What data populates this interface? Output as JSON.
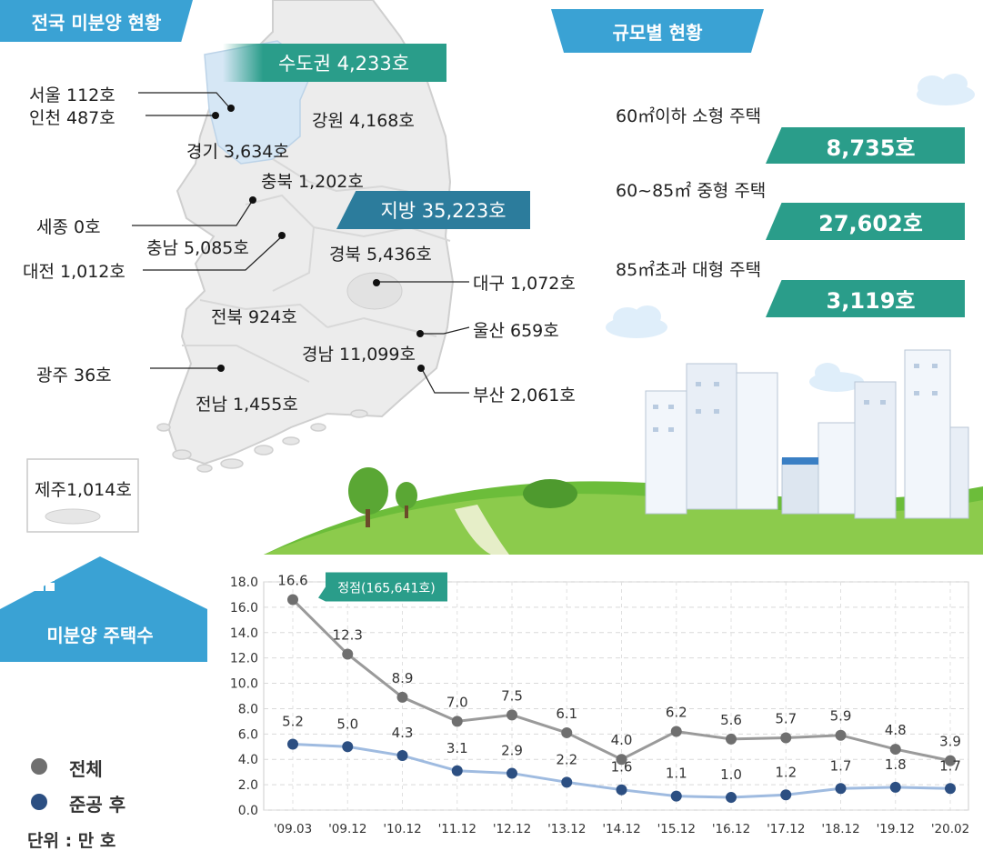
{
  "header": {
    "national_title": "전국 미분양 현황",
    "scale_title": "규모별 현황",
    "count_title": "미분양 주택수"
  },
  "regions": {
    "capital_total": "수도권 4,233호",
    "local_total": "지방 35,223호",
    "seoul": "서울  112호",
    "incheon": "인천 487호",
    "gyeonggi": "경기 3,634호",
    "gangwon": "강원 4,168호",
    "chungbuk": "충북 1,202호",
    "sejong": "세종 0호",
    "chungnam": "충남 5,085호",
    "daejeon": "대전 1,012호",
    "gyeongbuk": "경북 5,436호",
    "daegu": "대구 1,072호",
    "jeonbuk": "전북 924호",
    "ulsan": "울산 659호",
    "gyeongnam": "경남 11,099호",
    "gwangju": "광주 36호",
    "busan": "부산 2,061호",
    "jeonnam": "전남 1,455호",
    "jeju": "제주1,014호"
  },
  "scale": {
    "small_label": "60㎡이하 소형 주택",
    "small_value": "8,735호",
    "medium_label": "60~85㎡ 중형 주택",
    "medium_value": "27,602호",
    "large_label": "85㎡초과 대형 주택",
    "large_value": "3,119호"
  },
  "legend": {
    "total": "전체",
    "after_completion": "준공 후",
    "unit": "단위 : 만 호"
  },
  "colors": {
    "teal": "#2a9d8a",
    "banner_blue": "#3aa2d4",
    "total_line": "#9a9a9a",
    "total_dot": "#6f6f6f",
    "after_line": "#9fbbe0",
    "after_dot": "#2c4f82"
  },
  "chart_data": {
    "type": "line",
    "categories": [
      "'09.03",
      "'09.12",
      "'10.12",
      "'11.12",
      "'12.12",
      "'13.12",
      "'14.12",
      "'15.12",
      "'16.12",
      "'17.12",
      "'18.12",
      "'19.12",
      "'20.02"
    ],
    "series": [
      {
        "name": "전체",
        "values": [
          16.6,
          12.3,
          8.9,
          7.0,
          7.5,
          6.1,
          4.0,
          6.2,
          5.6,
          5.7,
          5.9,
          4.8,
          3.9
        ]
      },
      {
        "name": "준공 후",
        "values": [
          5.2,
          5.0,
          4.3,
          3.1,
          2.9,
          2.2,
          1.6,
          1.1,
          1.0,
          1.2,
          1.7,
          1.8,
          1.7
        ]
      }
    ],
    "value_labels": {
      "total": [
        "16.6",
        "12.3",
        "8.9",
        "7.0",
        "7.5",
        "6.1",
        "4.0",
        "6.2",
        "5.6",
        "5.7",
        "5.9",
        "4.8",
        "3.9"
      ],
      "after": [
        "5.2",
        "5.0",
        "4.3",
        "3.1",
        "2.9",
        "2.2",
        "1.6",
        "1.1",
        "1.0",
        "1.2",
        "1.7",
        "1.8",
        "1.7"
      ]
    },
    "yticks": [
      "0.0",
      "2.0",
      "4.0",
      "6.0",
      "8.0",
      "10.0",
      "12.0",
      "14.0",
      "16.0",
      "18.0"
    ],
    "ylim": [
      0,
      18
    ],
    "grid": true,
    "annotation": "정점(165,641호)"
  }
}
